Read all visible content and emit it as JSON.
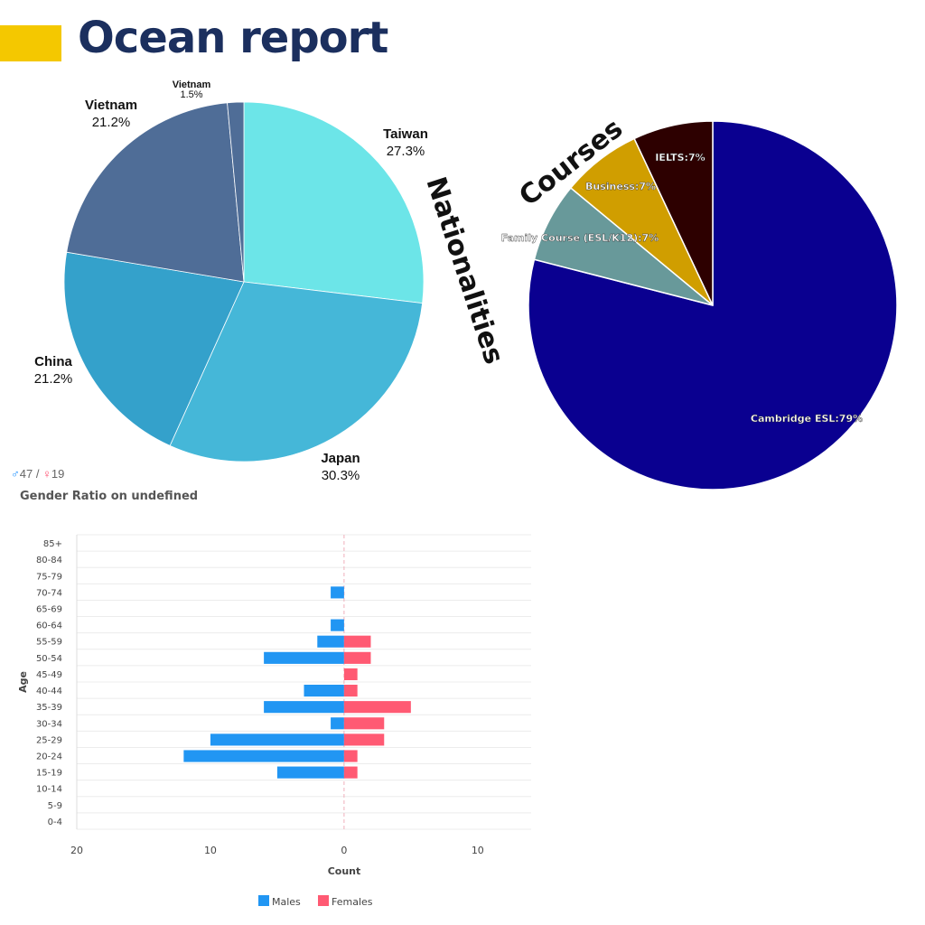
{
  "page": {
    "title": "Ocean report",
    "accent_color": "#f4c800",
    "title_color": "#1b2f5e"
  },
  "gender": {
    "male_symbol": "♂",
    "male_count": "47",
    "separator": "/",
    "female_symbol": "♀",
    "female_count": "19"
  },
  "chart_data": [
    {
      "type": "pie",
      "title": "Nationalities",
      "labels": [
        "Taiwan",
        "Japan",
        "China",
        "Vietnam",
        "Vietnam"
      ],
      "values": [
        27.3,
        30.3,
        21.2,
        21.2,
        1.5
      ],
      "value_labels": [
        "27.3%",
        "30.3%",
        "21.2%",
        "21.2%",
        "1.5%"
      ],
      "colors": [
        "#6ce5e8",
        "#45b7d8",
        "#34a1cb",
        "#4f6d97",
        "#4f6d97"
      ]
    },
    {
      "type": "pie",
      "title": "Courses",
      "labels": [
        "Cambridge ESL",
        "Family Course (ESL/K12)",
        "Business",
        "IELTS"
      ],
      "values": [
        79,
        7,
        7,
        7
      ],
      "value_labels": [
        "Cambridge ESL:79%",
        "Family Course (ESL/K12):7%",
        "Business:7%",
        "IELTS:7%"
      ],
      "colors": [
        "#0a0090",
        "#68999a",
        "#d09e00",
        "#2d0000"
      ]
    },
    {
      "type": "bar",
      "orientation": "horizontal",
      "title": "Gender Ratio on undefined",
      "xlabel": "Count",
      "ylabel": "Age",
      "categories": [
        "85+",
        "80-84",
        "75-79",
        "70-74",
        "65-69",
        "60-64",
        "55-59",
        "50-54",
        "45-49",
        "40-44",
        "35-39",
        "30-34",
        "25-29",
        "20-24",
        "15-19",
        "10-14",
        "5-9",
        "0-4"
      ],
      "xlim": [
        -20,
        14
      ],
      "xticks": [
        -20,
        -10,
        0,
        10
      ],
      "xtick_labels": [
        "20",
        "10",
        "0",
        "10"
      ],
      "series": [
        {
          "name": "Males",
          "color": "#2196f3",
          "values": [
            0,
            0,
            0,
            -1,
            0,
            -1,
            -2,
            -6,
            0,
            -3,
            -6,
            -1,
            -10,
            -12,
            -5,
            0,
            0,
            0
          ]
        },
        {
          "name": "Females",
          "color": "#ff5a73",
          "values": [
            0,
            0,
            0,
            0,
            0,
            0,
            2,
            2,
            1,
            1,
            5,
            3,
            3,
            1,
            1,
            0,
            0,
            0
          ]
        }
      ],
      "legend": "bottom"
    }
  ]
}
